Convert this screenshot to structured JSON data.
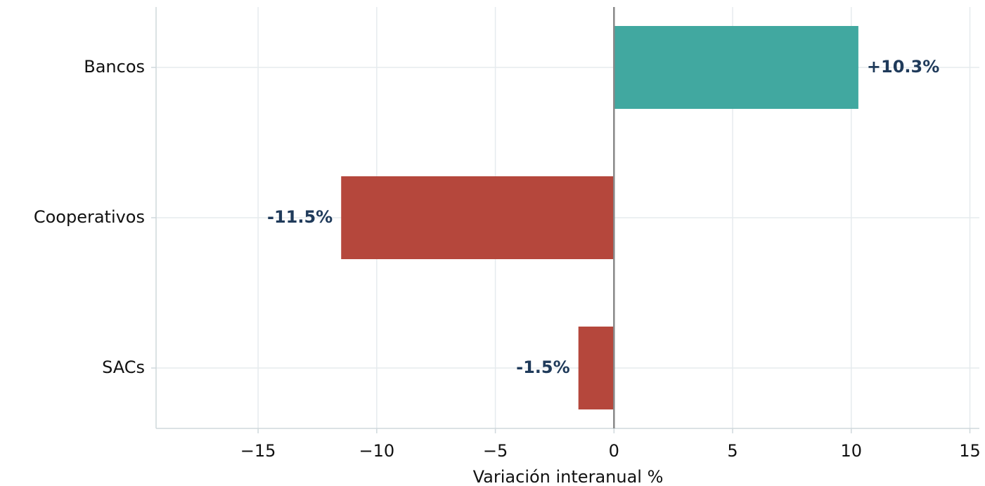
{
  "chart_data": {
    "type": "barh",
    "categories": [
      "Bancos",
      "Cooperativos",
      "SACs"
    ],
    "values": [
      10.3,
      -11.5,
      -1.5
    ],
    "value_labels": [
      "+10.3%",
      "-11.5%",
      "-1.5%"
    ],
    "colors": [
      "#41a8a0",
      "#b5473c",
      "#b5473c"
    ],
    "xlabel": "Variación interanual %",
    "xlim": [
      -19.3,
      15.4
    ],
    "xticks": [
      {
        "value": -15,
        "label": "−15"
      },
      {
        "value": -10,
        "label": "−10"
      },
      {
        "value": -5,
        "label": "−5"
      },
      0,
      5,
      10,
      15
    ],
    "grid": true
  }
}
